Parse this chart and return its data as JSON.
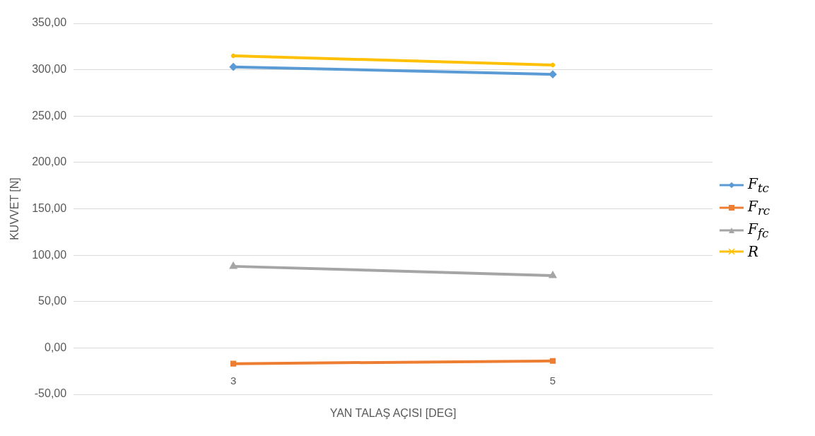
{
  "chart_data": {
    "type": "line",
    "xlabel": "YAN TALAŞ AÇISI [DEG]",
    "ylabel": "KUVVET [N]",
    "categories": [
      "3",
      "5"
    ],
    "series": [
      {
        "name": "F$_{tc}$",
        "color": "#5b9bd5",
        "values": [
          303,
          295
        ],
        "marker": "diamond"
      },
      {
        "name": "F$_{rc}$",
        "color": "#ed7d31",
        "values": [
          -17,
          -14
        ],
        "marker": "square"
      },
      {
        "name": "F$_{fc}$",
        "color": "#a5a5a5",
        "values": [
          88,
          78
        ],
        "marker": "triangle"
      },
      {
        "name": "R",
        "color": "#ffc000",
        "values": [
          315,
          305
        ],
        "marker": "cross"
      }
    ],
    "ylim": [
      -50,
      350
    ],
    "yticks": [
      {
        "value": -50,
        "label": "-50,00"
      },
      {
        "value": 0,
        "label": "0,00"
      },
      {
        "value": 50,
        "label": "50,00"
      },
      {
        "value": 100,
        "label": "100,00"
      },
      {
        "value": 150,
        "label": "150,00"
      },
      {
        "value": 200,
        "label": "200,00"
      },
      {
        "value": 250,
        "label": "250,00"
      },
      {
        "value": 300,
        "label": "300,00"
      },
      {
        "value": 350,
        "label": "350,00"
      }
    ],
    "grid": "y",
    "legend": "right"
  }
}
